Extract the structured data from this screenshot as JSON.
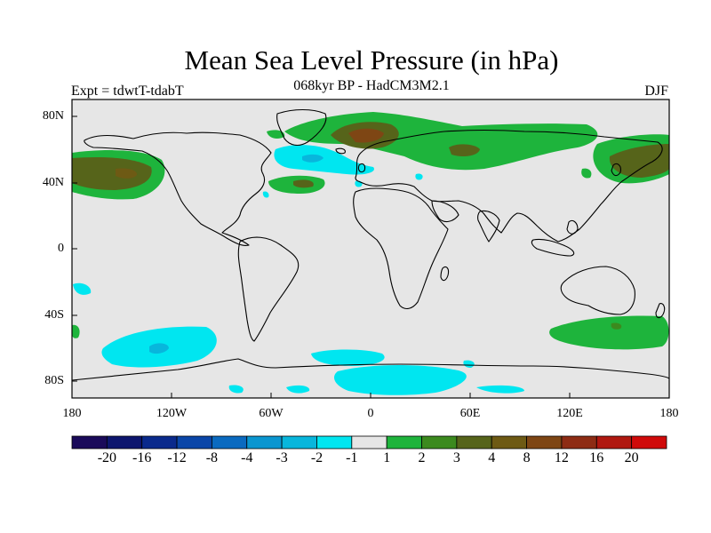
{
  "title": "Mean Sea Level Pressure (in hPa)",
  "subtitle": "068kyr BP - HadCM3M2.1",
  "experiment": "Expt = tdwtT-tdabT",
  "season": "DJF",
  "lat_labels": [
    "80N",
    "40N",
    "0",
    "40S",
    "80S"
  ],
  "lon_labels": [
    "180",
    "120W",
    "60W",
    "0",
    "60E",
    "120E",
    "180"
  ],
  "colorbar": {
    "colors": [
      "#1a0a5a",
      "#0d166e",
      "#0a2a8c",
      "#0a46a8",
      "#0a6ac0",
      "#0a96d0",
      "#08b6dc",
      "#00e6f0",
      "#e6e6e6",
      "#1eb43c",
      "#3c8a1e",
      "#56641a",
      "#6e5a14",
      "#7e4614",
      "#8e2c14",
      "#b01810",
      "#d00a0a"
    ],
    "labels": [
      "-20",
      "-16",
      "-12",
      "-8",
      "-4",
      "-3",
      "-2",
      "-1",
      "1",
      "2",
      "3",
      "4",
      "8",
      "12",
      "16",
      "20"
    ]
  },
  "colors": {
    "ocean_background": "#e6e6e6",
    "neg1_to_neg2": "#00e6f0",
    "neg2_to_neg3": "#08b6dc",
    "pos1_to_2": "#1eb43c",
    "pos2_to_3": "#3c8a1e",
    "pos3_to_4": "#56641a",
    "pos4_to_8": "#6e5a14",
    "pos8_to_12": "#7e4614"
  }
}
